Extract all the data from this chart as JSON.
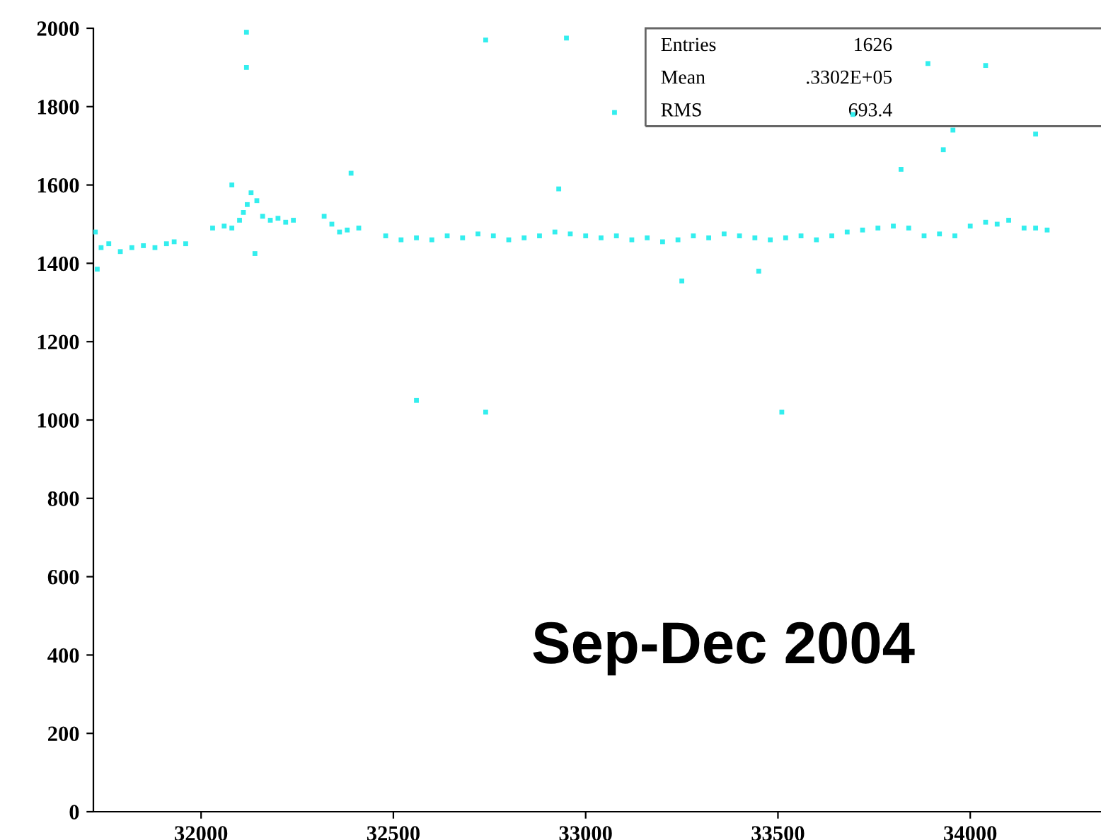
{
  "chart_data": {
    "type": "scatter",
    "color": "#33eeee",
    "marker": "square",
    "grid": false,
    "xlim": [
      31720,
      34340
    ],
    "ylim": [
      0,
      2000
    ],
    "xticks": [
      32000,
      32500,
      33000,
      33500,
      34000
    ],
    "yticks": [
      0,
      200,
      400,
      600,
      800,
      1000,
      1200,
      1400,
      1600,
      1800,
      2000
    ],
    "annotations": [
      "Entries",
      "1626",
      "Mean",
      ".3302E+05",
      "RMS",
      "693.4",
      "Sep-Dec 2004"
    ],
    "x": [
      31725,
      31740,
      31760,
      31790,
      31820,
      31850,
      31880,
      31910,
      31930,
      31960,
      32030,
      32060,
      32080,
      32100,
      32110,
      32120,
      32130,
      32145,
      32160,
      32180,
      32200,
      32220,
      32240,
      32320,
      32340,
      32360,
      32380,
      32410,
      32480,
      32520,
      32560,
      32600,
      32640,
      32680,
      32720,
      32760,
      32800,
      32840,
      32880,
      32920,
      32960,
      33000,
      33040,
      33080,
      33120,
      33160,
      33200,
      33240,
      33280,
      33320,
      33360,
      33400,
      33440,
      33480,
      33520,
      33560,
      33600,
      33640,
      33680,
      33720,
      33760,
      33800,
      33840,
      33880,
      33920,
      33960,
      34000,
      34040,
      34070,
      34100,
      34140,
      34170,
      34200,
      32118,
      32118,
      32740,
      32950,
      33075,
      32740,
      32560,
      33510,
      33890,
      33695,
      33820,
      33930,
      33955,
      34040,
      34170,
      32390,
      32930,
      32080,
      33250,
      33450,
      31730,
      32140
    ],
    "values": [
      1480,
      1440,
      1450,
      1430,
      1440,
      1445,
      1440,
      1450,
      1455,
      1450,
      1490,
      1495,
      1490,
      1510,
      1530,
      1550,
      1580,
      1560,
      1520,
      1510,
      1515,
      1505,
      1510,
      1520,
      1500,
      1480,
      1485,
      1490,
      1470,
      1460,
      1465,
      1460,
      1470,
      1465,
      1475,
      1470,
      1460,
      1465,
      1470,
      1480,
      1475,
      1470,
      1465,
      1470,
      1460,
      1465,
      1455,
      1460,
      1470,
      1465,
      1475,
      1470,
      1465,
      1460,
      1465,
      1470,
      1460,
      1470,
      1480,
      1485,
      1490,
      1495,
      1490,
      1470,
      1475,
      1470,
      1495,
      1505,
      1500,
      1510,
      1490,
      1490,
      1485,
      1990,
      1900,
      1970,
      1975,
      1785,
      1020,
      1050,
      1020,
      1910,
      1780,
      1640,
      1690,
      1740,
      1905,
      1730,
      1630,
      1590,
      1600,
      1355,
      1380,
      1385,
      1425
    ]
  }
}
